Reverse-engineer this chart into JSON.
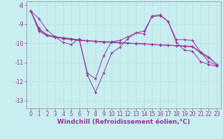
{
  "x": [
    0,
    1,
    2,
    3,
    4,
    5,
    6,
    7,
    8,
    9,
    10,
    11,
    12,
    13,
    14,
    15,
    16,
    17,
    18,
    19,
    20,
    21,
    22,
    23
  ],
  "series1_y": [
    -8.3,
    -8.7,
    -9.3,
    -9.65,
    -9.95,
    -10.05,
    -9.75,
    -11.65,
    -12.55,
    -11.55,
    -10.5,
    -10.2,
    -9.75,
    -9.45,
    -9.35,
    -8.6,
    -8.55,
    -8.85,
    -9.8,
    -9.8,
    -9.85,
    -10.45,
    -10.95,
    -11.15
  ],
  "series2_y": [
    -8.3,
    -9.3,
    -9.55,
    -9.65,
    -9.75,
    -9.8,
    -9.85,
    -9.87,
    -9.9,
    -9.93,
    -9.95,
    -9.97,
    -9.99,
    -10.01,
    -10.03,
    -10.05,
    -10.07,
    -10.09,
    -10.11,
    -10.13,
    -10.15,
    -10.45,
    -10.7,
    -11.1
  ],
  "series3_y": [
    -8.3,
    -9.35,
    -9.6,
    -9.68,
    -9.72,
    -9.78,
    -9.82,
    -9.85,
    -9.88,
    -9.9,
    -9.92,
    -9.95,
    -9.98,
    -10.0,
    -10.02,
    -10.05,
    -10.08,
    -10.1,
    -10.12,
    -10.15,
    -10.18,
    -10.5,
    -10.75,
    -11.1
  ],
  "series4_y": [
    -8.3,
    -9.2,
    -9.55,
    -9.65,
    -9.7,
    -9.75,
    -9.82,
    -11.55,
    -11.85,
    -10.65,
    -9.9,
    -9.85,
    -9.65,
    -9.45,
    -9.5,
    -8.55,
    -8.5,
    -8.85,
    -9.95,
    -10.35,
    -10.4,
    -10.95,
    -11.1,
    -11.2
  ],
  "xlim": [
    -0.5,
    23.5
  ],
  "ylim": [
    -13.4,
    -7.8
  ],
  "yticks": [
    -8,
    -9,
    -10,
    -11,
    -12,
    -13
  ],
  "xticks": [
    0,
    1,
    2,
    3,
    4,
    5,
    6,
    7,
    8,
    9,
    10,
    11,
    12,
    13,
    14,
    15,
    16,
    17,
    18,
    19,
    20,
    21,
    22,
    23
  ],
  "xlabel": "Windchill (Refroidissement éolien,°C)",
  "grid_color": "#b8dde0",
  "bg_color": "#c8eef0",
  "line_color": "#993399",
  "tick_fontsize": 5.5,
  "xlabel_fontsize": 6.5
}
